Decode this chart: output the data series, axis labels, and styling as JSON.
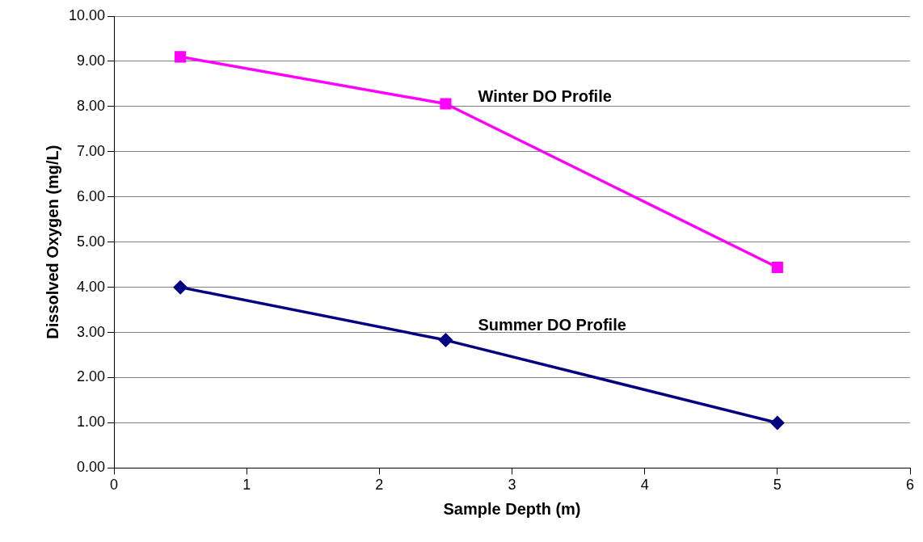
{
  "chart_data": {
    "type": "line",
    "xlabel": "Sample Depth (m)",
    "ylabel": "Dissolved Oxygen (mg/L)",
    "x": [
      0.5,
      2.5,
      5
    ],
    "series": [
      {
        "name": "Winter DO Profile",
        "color": "#ff00ff",
        "marker": "square",
        "values": [
          9.1,
          8.06,
          4.44
        ]
      },
      {
        "name": "Summer DO Profile",
        "color": "#000080",
        "marker": "diamond",
        "values": [
          4.0,
          2.83,
          1.0
        ]
      }
    ],
    "xlim": [
      0,
      6
    ],
    "xticks": [
      0,
      1,
      2,
      3,
      4,
      5,
      6
    ],
    "ylim": [
      0,
      10
    ],
    "yticks": [
      {
        "value": 0,
        "label": "0.00"
      },
      {
        "value": 1,
        "label": "1.00"
      },
      {
        "value": 2,
        "label": "2.00"
      },
      {
        "value": 3,
        "label": "3.00"
      },
      {
        "value": 4,
        "label": "4.00"
      },
      {
        "value": 5,
        "label": "5.00"
      },
      {
        "value": 6,
        "label": "6.00"
      },
      {
        "value": 7,
        "label": "7.00"
      },
      {
        "value": 8,
        "label": "8.00"
      },
      {
        "value": 9,
        "label": "9.00"
      },
      {
        "value": 10,
        "label": "10.00"
      }
    ],
    "grid": "y",
    "legend": false
  }
}
